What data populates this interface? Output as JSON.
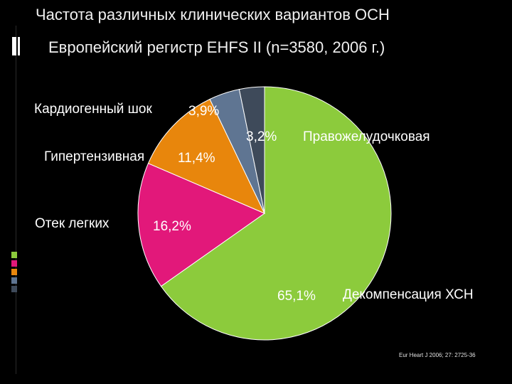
{
  "header": {
    "title": "Частота различных клинических вариантов ОСН",
    "subtitle": "Европейский регистр EHFS II (n=3580, 2006 г.)"
  },
  "chart_data": {
    "type": "pie",
    "slices": [
      {
        "label": "Декомпенсация ХСН",
        "value": 65.1,
        "value_label": "65,1%",
        "color": "#8CCB3C"
      },
      {
        "label": "Отек легких",
        "value": 16.2,
        "value_label": "16,2%",
        "color": "#E2187A"
      },
      {
        "label": "Гипертензивная",
        "value": 11.4,
        "value_label": "11,4%",
        "color": "#E8860C"
      },
      {
        "label": "Кардиогенный шок",
        "value": 3.9,
        "value_label": "3,9%",
        "color": "#5F7592"
      },
      {
        "label": "Правожелудочковая",
        "value": 3.2,
        "value_label": "3,2%",
        "color": "#3E4A5A"
      }
    ],
    "start": "12 o'clock, clockwise"
  },
  "footer": {
    "source": "Eur Heart J 2006; 27: 2725-36"
  },
  "colors": {
    "background": "#000000",
    "text": "#ffffff",
    "deco_squares": [
      "#8CCB3C",
      "#E2187A",
      "#E8860C",
      "#5F7592",
      "#3E4A5A"
    ]
  }
}
